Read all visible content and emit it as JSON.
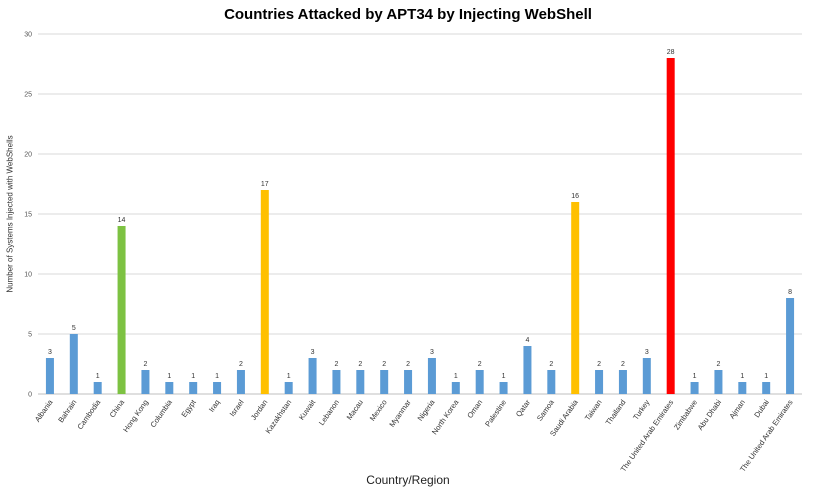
{
  "chart_data": {
    "type": "bar",
    "title": "Countries Attacked by APT34 by Injecting WebShell",
    "xlabel": "Country/Region",
    "ylabel": "Number of Systems Injected with WebShells",
    "ylim": [
      0,
      30
    ],
    "yticks": [
      0,
      5,
      10,
      15,
      20,
      25,
      30
    ],
    "grid": true,
    "categories": [
      "Albania",
      "Bahrain",
      "Cambodia",
      "China",
      "Hong Kong",
      "Columbia",
      "Egypt",
      "Iraq",
      "Israel",
      "Jordan",
      "Kazakhstan",
      "Kuwait",
      "Lebanon",
      "Macau",
      "Mexico",
      "Myanmar",
      "Nigeria",
      "North Korea",
      "Oman",
      "Palestine",
      "Qatar",
      "Samoa",
      "Saudi Arabia",
      "Taiwan",
      "Thailand",
      "Turkey",
      "The United Arab Emirates",
      "Zimbabwe",
      "Abu Dhabi",
      "Ajman",
      "Dubai",
      "The United Arab Emirates"
    ],
    "values": [
      3,
      5,
      1,
      14,
      2,
      1,
      1,
      1,
      2,
      17,
      1,
      3,
      2,
      2,
      2,
      2,
      3,
      1,
      2,
      1,
      4,
      2,
      16,
      2,
      2,
      3,
      28,
      1,
      2,
      1,
      1,
      8
    ],
    "colors": [
      "#5b9bd5",
      "#5b9bd5",
      "#5b9bd5",
      "#7dc242",
      "#5b9bd5",
      "#5b9bd5",
      "#5b9bd5",
      "#5b9bd5",
      "#5b9bd5",
      "#ffc000",
      "#5b9bd5",
      "#5b9bd5",
      "#5b9bd5",
      "#5b9bd5",
      "#5b9bd5",
      "#5b9bd5",
      "#5b9bd5",
      "#5b9bd5",
      "#5b9bd5",
      "#5b9bd5",
      "#5b9bd5",
      "#5b9bd5",
      "#ffc000",
      "#5b9bd5",
      "#5b9bd5",
      "#5b9bd5",
      "#ff0000",
      "#5b9bd5",
      "#5b9bd5",
      "#5b9bd5",
      "#5b9bd5",
      "#5b9bd5"
    ],
    "colors_meaning": {
      "default": "#5b9bd5",
      "highlight_green": "#7dc242",
      "highlight_yellow": "#ffc000",
      "highlight_red": "#ff0000"
    },
    "data_labels": true
  }
}
